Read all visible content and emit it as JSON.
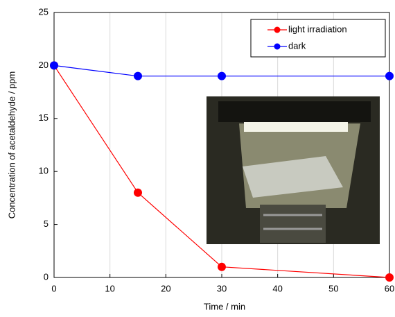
{
  "chart_data": {
    "type": "line",
    "x": [
      0,
      15,
      30,
      60
    ],
    "series": [
      {
        "name": "light irradiation",
        "color": "#ff0000",
        "values": [
          20,
          8,
          1,
          0
        ]
      },
      {
        "name": "dark",
        "color": "#0000ff",
        "values": [
          20,
          19,
          19,
          19
        ]
      }
    ],
    "xlabel": "Time / min",
    "ylabel": "Concentration of acetaldehyde / ppm",
    "xlim": [
      0,
      60
    ],
    "xticks": [
      0,
      10,
      20,
      30,
      40,
      50,
      60
    ],
    "ylim": [
      0,
      25
    ],
    "yticks": [
      0,
      5,
      10,
      15,
      20,
      25
    ],
    "grid": true,
    "legend": "upper right"
  }
}
